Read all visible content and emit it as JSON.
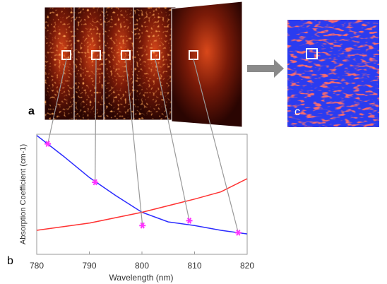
{
  "chart_data": {
    "type": "line",
    "annotations": [
      "a",
      "b",
      "c"
    ],
    "xlabel": "Wavelength (nm)",
    "ylabel": "Absorption Coefficient (cm-1)",
    "xlim": [
      780,
      820
    ],
    "xticks": [
      780,
      790,
      800,
      810,
      820
    ],
    "ylim": [
      0,
      1
    ],
    "series": [
      {
        "color": "#2b2bff",
        "x": [
          780,
          785,
          790,
          795,
          800,
          805,
          810,
          815,
          820
        ],
        "values": [
          0.99,
          0.82,
          0.64,
          0.49,
          0.35,
          0.27,
          0.24,
          0.2,
          0.17
        ]
      },
      {
        "color": "#ff3333",
        "x": [
          780,
          790,
          800,
          810,
          815,
          820
        ],
        "values": [
          0.2,
          0.26,
          0.35,
          0.46,
          0.52,
          0.63
        ]
      }
    ],
    "points": {
      "color": "#ff33ff",
      "x": [
        782.1,
        791.1,
        800.1,
        809,
        818.3
      ],
      "values": [
        0.92,
        0.6,
        0.24,
        0.28,
        0.18
      ]
    }
  }
}
